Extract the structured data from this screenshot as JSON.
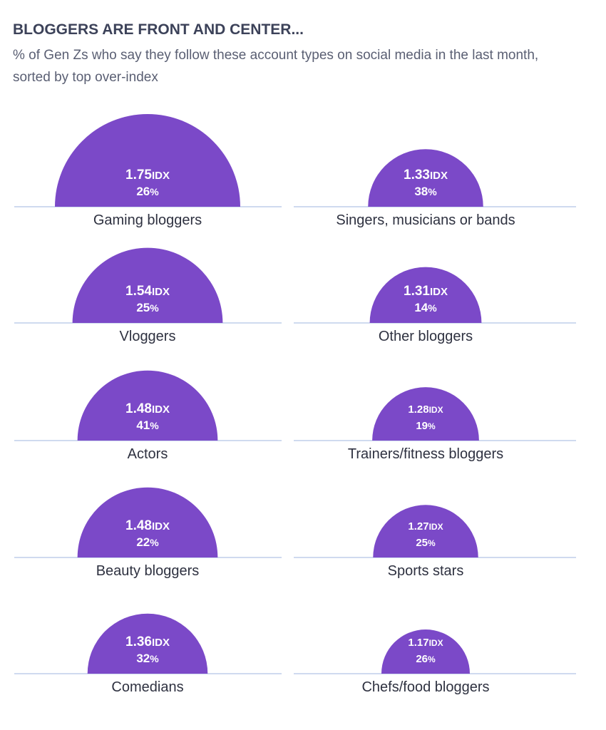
{
  "header": {
    "title": "BLOGGERS ARE FRONT AND CENTER...",
    "subtitle": "% of Gen Zs who say they follow these account types on social media in the last month, sorted by top over-index"
  },
  "colors": {
    "dome": "#7b49c8",
    "baseline": "#cfdaef",
    "title": "#3c4259",
    "label": "#2e3140"
  },
  "chart_data": {
    "type": "bar",
    "idx_unit": "IDX",
    "pct_unit": "%",
    "items": [
      {
        "category": "Gaming bloggers",
        "idx": "1.75",
        "pct": "26"
      },
      {
        "category": "Singers, musicians or bands",
        "idx": "1.33",
        "pct": "38"
      },
      {
        "category": "Vloggers",
        "idx": "1.54",
        "pct": "25"
      },
      {
        "category": "Other bloggers",
        "idx": "1.31",
        "pct": "14"
      },
      {
        "category": "Actors",
        "idx": "1.48",
        "pct": "41"
      },
      {
        "category": "Trainers/fitness bloggers",
        "idx": "1.28",
        "pct": "19"
      },
      {
        "category": "Beauty bloggers",
        "idx": "1.48",
        "pct": "22"
      },
      {
        "category": "Sports stars",
        "idx": "1.27",
        "pct": "25"
      },
      {
        "category": "Comedians",
        "idx": "1.36",
        "pct": "32"
      },
      {
        "category": "Chefs/food bloggers",
        "idx": "1.17",
        "pct": "26"
      }
    ]
  }
}
